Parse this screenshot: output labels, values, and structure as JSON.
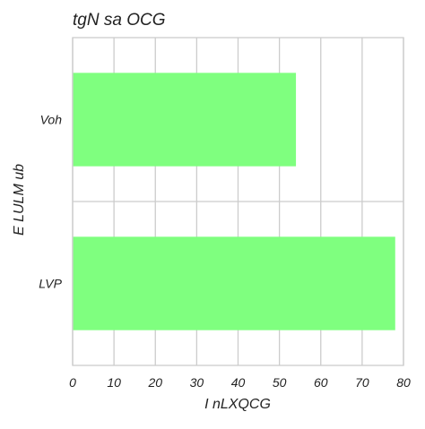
{
  "chart_data": {
    "type": "bar",
    "orientation": "horizontal",
    "title": "tgN sa OCG",
    "xlabel": "I  nLXQCG",
    "ylabel": "E LULM ub",
    "categories": [
      "Voh",
      "LVP"
    ],
    "values": [
      54,
      78
    ],
    "xlim": [
      0,
      80
    ],
    "x_ticks": [
      0,
      10,
      20,
      30,
      40,
      50,
      60,
      70,
      80
    ],
    "grid": true,
    "bar_color": "#7fff7f",
    "grid_color": "#cccccc",
    "legend": "none"
  }
}
